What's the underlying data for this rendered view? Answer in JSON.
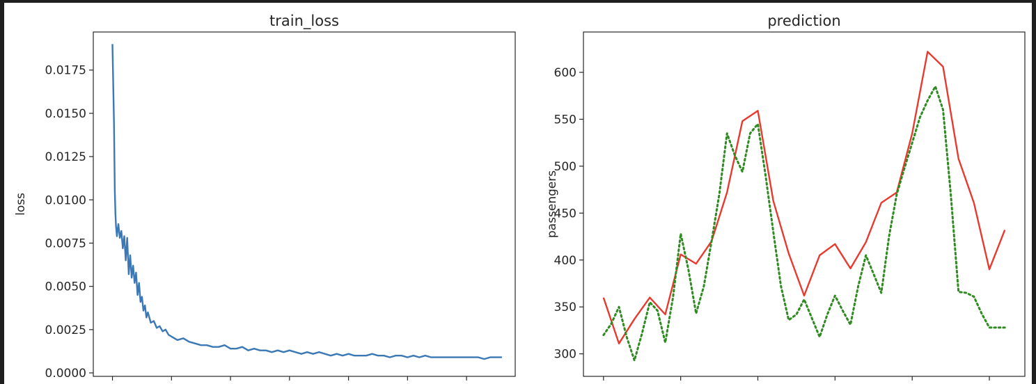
{
  "chart_data": [
    {
      "type": "line",
      "title": "train_loss",
      "xlabel": "",
      "ylabel": "loss",
      "xlim": [
        -65,
        1365
      ],
      "ylim": [
        -0.0002,
        0.0197
      ],
      "yticks": [
        0.0,
        0.0025,
        0.005,
        0.0075,
        0.01,
        0.0125,
        0.015,
        0.0175
      ],
      "ytick_labels": [
        "0.0000",
        "0.0025",
        "0.0050",
        "0.0075",
        "0.0100",
        "0.0125",
        "0.0150",
        "0.0175"
      ],
      "xticks": [
        0,
        200,
        400,
        600,
        800,
        1000,
        1200
      ],
      "xtick_labels": [
        "",
        "",
        "",
        "",
        "",
        "",
        ""
      ],
      "grid": false,
      "series": [
        {
          "color": "#3a78b6",
          "style": "solid",
          "x": [
            0,
            5,
            8,
            10,
            12,
            15,
            20,
            25,
            30,
            35,
            40,
            45,
            50,
            55,
            60,
            65,
            70,
            75,
            80,
            85,
            90,
            95,
            100,
            105,
            110,
            115,
            120,
            130,
            140,
            150,
            160,
            170,
            180,
            190,
            200,
            220,
            240,
            260,
            280,
            300,
            320,
            340,
            360,
            380,
            400,
            420,
            440,
            460,
            480,
            500,
            520,
            540,
            560,
            580,
            600,
            620,
            640,
            660,
            680,
            700,
            720,
            740,
            760,
            780,
            800,
            820,
            840,
            860,
            880,
            900,
            920,
            940,
            960,
            980,
            1000,
            1020,
            1040,
            1060,
            1080,
            1100,
            1120,
            1140,
            1160,
            1180,
            1200,
            1220,
            1240,
            1260,
            1280,
            1300,
            1320
          ],
          "y": [
            0.019,
            0.0145,
            0.0105,
            0.0092,
            0.0085,
            0.0079,
            0.0086,
            0.0078,
            0.0082,
            0.0072,
            0.0079,
            0.0065,
            0.0078,
            0.0057,
            0.0068,
            0.0055,
            0.0062,
            0.0052,
            0.0058,
            0.0045,
            0.0052,
            0.0041,
            0.0044,
            0.0036,
            0.0039,
            0.0032,
            0.0035,
            0.0029,
            0.003,
            0.0026,
            0.0027,
            0.0024,
            0.0025,
            0.0022,
            0.0021,
            0.0019,
            0.002,
            0.0018,
            0.0017,
            0.0016,
            0.0016,
            0.0015,
            0.0015,
            0.0016,
            0.0014,
            0.0014,
            0.0015,
            0.0013,
            0.0014,
            0.0013,
            0.0013,
            0.0012,
            0.0013,
            0.0012,
            0.0013,
            0.0012,
            0.0011,
            0.0012,
            0.0011,
            0.0012,
            0.0011,
            0.001,
            0.0011,
            0.001,
            0.0011,
            0.001,
            0.001,
            0.001,
            0.0011,
            0.001,
            0.001,
            0.0009,
            0.001,
            0.001,
            0.0009,
            0.001,
            0.0009,
            0.001,
            0.0009,
            0.0009,
            0.0009,
            0.0009,
            0.0009,
            0.0009,
            0.0009,
            0.0009,
            0.0009,
            0.0008,
            0.0009,
            0.0009,
            0.0009
          ]
        }
      ]
    },
    {
      "type": "line",
      "title": "prediction",
      "xlabel": "",
      "ylabel": "passengers",
      "xlim": [
        -1.3,
        27.3
      ],
      "ylim": [
        276,
        643
      ],
      "yticks": [
        300,
        350,
        400,
        450,
        500,
        550,
        600
      ],
      "ytick_labels": [
        "300",
        "350",
        "400",
        "450",
        "500",
        "550",
        "600"
      ],
      "xticks": [
        0,
        5,
        10,
        15,
        20,
        25
      ],
      "xtick_labels": [
        "",
        "",
        "",
        "",
        "",
        ""
      ],
      "grid": false,
      "series": [
        {
          "color": "#e8392e",
          "style": "solid",
          "x": [
            0,
            1,
            2,
            3,
            4,
            5,
            6,
            7,
            8,
            9,
            10,
            11,
            12,
            13,
            14,
            15,
            16,
            17,
            18,
            19,
            20,
            21,
            22,
            23,
            24,
            25,
            26
          ],
          "y": [
            360,
            311,
            337,
            360,
            342,
            406,
            396,
            420,
            472,
            548,
            559,
            463,
            407,
            362,
            405,
            417,
            391,
            419,
            461,
            472,
            535,
            622,
            606,
            508,
            461,
            390,
            432
          ]
        },
        {
          "color": "#2e8b20",
          "style": "dotted",
          "x": [
            0,
            0.5,
            1,
            1.5,
            2,
            2.5,
            3,
            3.5,
            4,
            4.5,
            5,
            5.5,
            6,
            6.5,
            7,
            7.5,
            8,
            8.5,
            9,
            9.5,
            10,
            10.5,
            11,
            11.5,
            12,
            12.5,
            13,
            13.5,
            14,
            14.5,
            15,
            15.5,
            16,
            16.5,
            17,
            17.5,
            18,
            18.5,
            19,
            19.5,
            20,
            20.5,
            21,
            21.5,
            22,
            22.5,
            23,
            23.5,
            24,
            24.5,
            25,
            25.5,
            26
          ],
          "y": [
            320,
            332,
            350,
            318,
            293,
            322,
            355,
            346,
            312,
            360,
            428,
            390,
            343,
            372,
            420,
            470,
            535,
            512,
            494,
            535,
            545,
            490,
            430,
            372,
            336,
            342,
            358,
            338,
            318,
            342,
            362,
            346,
            331,
            372,
            405,
            385,
            365,
            425,
            470,
            498,
            525,
            552,
            570,
            585,
            560,
            470,
            366,
            365,
            361,
            343,
            328,
            328,
            328
          ]
        }
      ]
    }
  ]
}
